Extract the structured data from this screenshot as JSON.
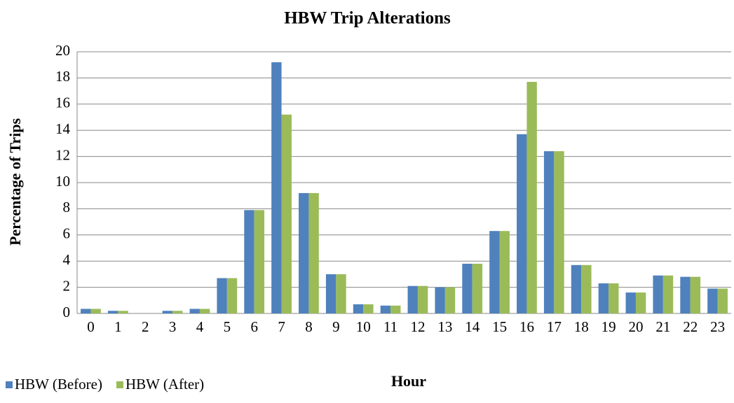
{
  "chart_data": {
    "type": "bar",
    "title": "HBW Trip Alterations",
    "x_label": "Hour",
    "y_label": "Percentage of Trips",
    "categories": [
      "0",
      "1",
      "2",
      "3",
      "4",
      "5",
      "6",
      "7",
      "8",
      "9",
      "10",
      "11",
      "12",
      "13",
      "14",
      "15",
      "16",
      "17",
      "18",
      "19",
      "20",
      "21",
      "22",
      "23"
    ],
    "series": [
      {
        "name": "HBW (Before)",
        "color": "#4f81bd",
        "values": [
          0.35,
          0.2,
          0,
          0.2,
          0.35,
          2.7,
          7.9,
          19.2,
          9.2,
          3.0,
          0.7,
          0.6,
          2.1,
          2.0,
          3.8,
          6.3,
          13.7,
          12.4,
          3.7,
          2.3,
          1.6,
          2.9,
          2.8,
          1.9
        ]
      },
      {
        "name": "HBW (After)",
        "color": "#9bbb59",
        "values": [
          0.35,
          0.2,
          0,
          0.2,
          0.35,
          2.7,
          7.9,
          15.2,
          9.2,
          3.0,
          0.7,
          0.6,
          2.1,
          2.0,
          3.8,
          6.3,
          17.7,
          12.4,
          3.7,
          2.3,
          1.6,
          2.9,
          2.8,
          1.9
        ]
      }
    ],
    "ylim": [
      0,
      20
    ],
    "yticks": [
      0,
      2,
      4,
      6,
      8,
      10,
      12,
      14,
      16,
      18,
      20
    ],
    "grid": true,
    "legend": "bottom-left"
  }
}
